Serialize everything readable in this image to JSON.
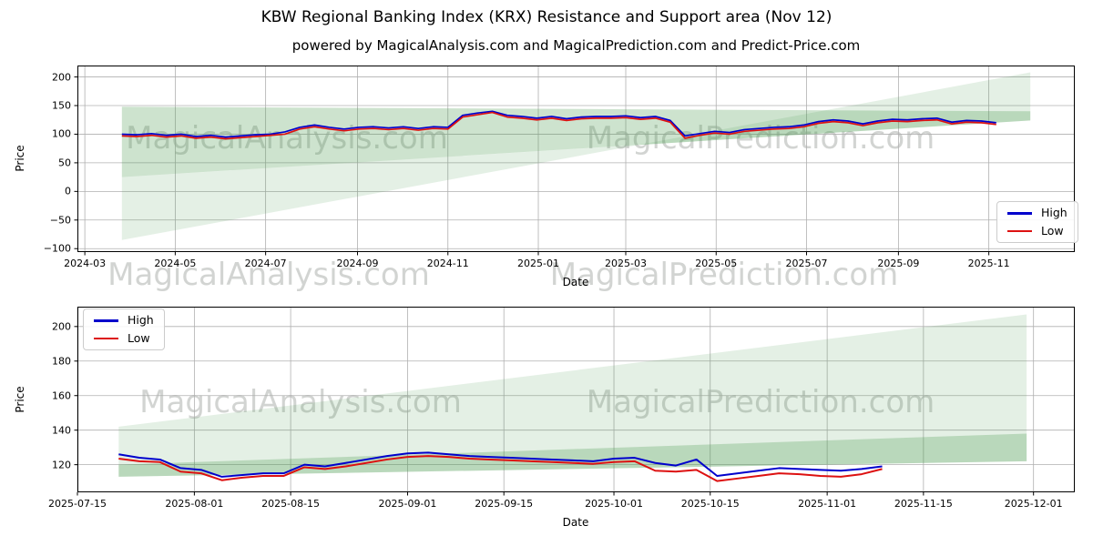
{
  "figure": {
    "title": "KBW Regional Banking Index (KRX) Resistance and Support area (Nov 12)",
    "subtitle": "powered by MagicalAnalysis.com and MagicalPrediction.com and Predict-Price.com"
  },
  "watermarks": {
    "left_text": "MagicalAnalysis.com",
    "right_text": "MagicalPrediction.com",
    "color": "#949994"
  },
  "colors": {
    "high_line": "#0000cc",
    "low_line": "#dd1111",
    "band_green": "#4c9950",
    "grid": "#b0b0b0",
    "spine": "#000000"
  },
  "chart_data": [
    {
      "type": "line",
      "xlabel": "Date",
      "ylabel": "Price",
      "grid": true,
      "legend_position": "center-right",
      "x_start_date": "2024-03-26",
      "ylim": [
        -106,
        220
      ],
      "yticks": [
        200,
        150,
        100,
        50,
        0,
        -50,
        -100
      ],
      "xlim_days": [
        -30,
        643
      ],
      "xticks": [
        {
          "label": "2024-03",
          "day": -25
        },
        {
          "label": "2024-05",
          "day": 36
        },
        {
          "label": "2024-07",
          "day": 97
        },
        {
          "label": "2024-09",
          "day": 159
        },
        {
          "label": "2024-11",
          "day": 220
        },
        {
          "label": "2025-01",
          "day": 281
        },
        {
          "label": "2025-03",
          "day": 340
        },
        {
          "label": "2025-05",
          "day": 401
        },
        {
          "label": "2025-07",
          "day": 462
        },
        {
          "label": "2025-09",
          "day": 524
        },
        {
          "label": "2025-11",
          "day": 585
        }
      ],
      "series": [
        {
          "name": "High",
          "color": "#0000cc",
          "step_days": 10,
          "values": [
            100,
            99,
            101,
            98,
            100,
            96,
            98,
            95,
            97,
            99,
            100,
            104,
            112,
            116,
            112,
            109,
            112,
            113,
            111,
            113,
            110,
            113,
            112,
            133,
            137,
            140,
            133,
            131,
            128,
            131,
            127,
            130,
            131,
            131,
            132,
            129,
            131,
            124,
            97,
            101,
            105,
            103,
            108,
            110,
            112,
            113,
            116,
            122,
            125,
            123,
            118,
            123,
            126,
            125,
            127,
            128,
            121,
            124,
            123,
            120
          ]
        },
        {
          "name": "Low",
          "color": "#dd1111",
          "step_days": 10,
          "values": [
            97,
            96,
            98,
            95,
            97,
            93,
            95,
            92,
            94,
            96,
            98,
            100,
            109,
            113,
            109,
            106,
            109,
            110,
            108,
            110,
            107,
            110,
            109,
            130,
            134,
            138,
            130,
            128,
            125,
            128,
            124,
            127,
            128,
            128,
            129,
            126,
            128,
            121,
            93,
            98,
            102,
            100,
            105,
            107,
            109,
            110,
            113,
            119,
            122,
            120,
            115,
            120,
            123,
            122,
            124,
            125,
            118,
            121,
            120,
            117
          ]
        }
      ],
      "bands": [
        {
          "name": "resistance-area",
          "color": "#4c9950",
          "opacity": 0.28,
          "points": [
            [
              0,
              148
            ],
            [
              613,
              140
            ],
            [
              613,
              124
            ],
            [
              0,
              25
            ]
          ]
        },
        {
          "name": "support-area-left-wedge",
          "color": "#4c9950",
          "opacity": 0.15,
          "points": [
            [
              0,
              25
            ],
            [
              348,
              81
            ],
            [
              0,
              -85
            ]
          ]
        },
        {
          "name": "support-area-right-wedge",
          "color": "#4c9950",
          "opacity": 0.15,
          "points": [
            [
              348,
              81
            ],
            [
              613,
              208
            ],
            [
              613,
              124
            ]
          ]
        }
      ]
    },
    {
      "type": "line",
      "xlabel": "Date",
      "ylabel": "Price",
      "grid": true,
      "legend_position": "upper-left",
      "x_start_date": "2025-07-21",
      "ylim": [
        104,
        211.5
      ],
      "yticks": [
        200,
        180,
        160,
        140,
        120
      ],
      "xlim_days": [
        -6,
        139
      ],
      "xticks": [
        {
          "label": "2025-07-15",
          "day": -6
        },
        {
          "label": "2025-08-01",
          "day": 11
        },
        {
          "label": "2025-08-15",
          "day": 25
        },
        {
          "label": "2025-09-01",
          "day": 42
        },
        {
          "label": "2025-09-15",
          "day": 56
        },
        {
          "label": "2025-10-01",
          "day": 72
        },
        {
          "label": "2025-10-15",
          "day": 86
        },
        {
          "label": "2025-11-01",
          "day": 103
        },
        {
          "label": "2025-11-15",
          "day": 117
        },
        {
          "label": "2025-12-01",
          "day": 133
        }
      ],
      "series": [
        {
          "name": "High",
          "color": "#0000cc",
          "step_days": 3,
          "values": [
            126,
            124,
            123,
            118,
            117,
            113,
            114,
            115,
            115,
            120,
            119,
            121,
            123,
            125,
            126.5,
            127,
            126,
            125,
            124.5,
            124,
            123.5,
            123,
            122.5,
            122,
            123.5,
            124,
            121,
            119.5,
            123,
            113.5,
            115,
            116.5,
            118,
            117.5,
            117,
            116.5,
            117.5,
            119
          ]
        },
        {
          "name": "Low",
          "color": "#dd1111",
          "step_days": 3,
          "values": [
            123.5,
            122,
            121.5,
            116,
            115,
            111,
            112.5,
            113.5,
            113.5,
            118.5,
            117.5,
            119,
            121,
            123,
            124.5,
            125,
            124.5,
            123.5,
            123,
            122.5,
            122,
            121.5,
            121,
            120.5,
            121.5,
            122,
            116.5,
            116,
            117,
            110.5,
            112,
            113.5,
            115,
            114.5,
            113.5,
            113,
            114.5,
            117.5
          ]
        }
      ],
      "bands": [
        {
          "name": "support-area",
          "color": "#4c9950",
          "opacity": 0.15,
          "points": [
            [
              0,
              142
            ],
            [
              132,
              207
            ],
            [
              132,
              122
            ],
            [
              0,
              113
            ]
          ]
        },
        {
          "name": "resistance-area",
          "color": "#4c9950",
          "opacity": 0.28,
          "points": [
            [
              0,
              120
            ],
            [
              132,
              138
            ],
            [
              132,
              122
            ],
            [
              0,
              113
            ]
          ]
        }
      ]
    }
  ]
}
